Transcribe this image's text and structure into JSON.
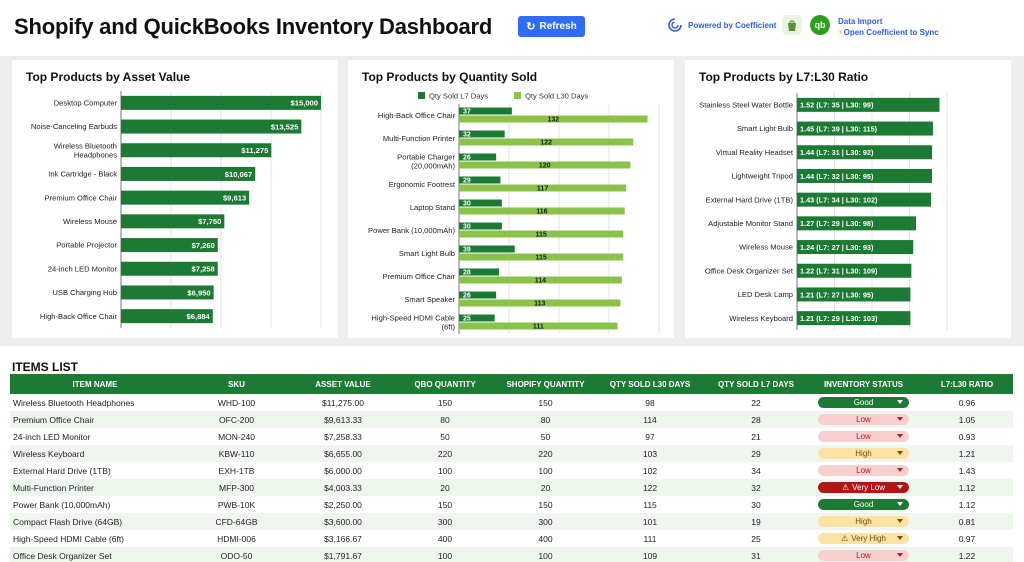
{
  "header": {
    "title": "Shopify and QuickBooks Inventory Dashboard",
    "refresh_label": "Refresh",
    "powered_by": "Powered by Coefficient",
    "data_import": "Data Import",
    "open_sync": "Open Coefficient to Sync",
    "qb_logo_text": "qb"
  },
  "colors": {
    "dark_green": "#1d7a34",
    "light_green": "#8bc34a",
    "accent_blue": "#2f6df6"
  },
  "chart_data": [
    {
      "type": "bar",
      "orientation": "horizontal",
      "title": "Top Products by Asset Value",
      "categories": [
        "Desktop Computer",
        "Noise-Canceling Earbuds",
        "Wireless Bluetooth Headphones",
        "Ink Cartridge - Black",
        "Premium Office Chair",
        "Wireless Mouse",
        "Portable Projector",
        "24-inch LED Monitor",
        "USB Charging Hub",
        "High-Back Office Chair"
      ],
      "values": [
        15000,
        13525,
        11275,
        10067,
        9613,
        7750,
        7260,
        7258,
        6950,
        6884
      ],
      "labels": [
        "$15,000",
        "$13,525",
        "$11,275",
        "$10,067",
        "$9,613",
        "$7,750",
        "$7,260",
        "$7,258",
        "$6,950",
        "$6,884"
      ],
      "xlim": [
        0,
        15000
      ]
    },
    {
      "type": "bar",
      "orientation": "horizontal",
      "title": "Top Products by Quantity Sold",
      "categories": [
        "High-Back Office Chair",
        "Multi-Function Printer",
        "Portable Charger (20,000mAh)",
        "Ergonomic Footrest",
        "Laptop Stand",
        "Power Bank (10,000mAh)",
        "Smart Light Bulb",
        "Premium Office Chair",
        "Smart Speaker",
        "High-Speed HDMI Cable (6ft)"
      ],
      "series": [
        {
          "name": "Qty Sold L7 Days",
          "values": [
            37,
            32,
            26,
            29,
            30,
            30,
            39,
            28,
            26,
            25
          ]
        },
        {
          "name": "Qty Sold L30 Days",
          "values": [
            132,
            122,
            120,
            117,
            116,
            115,
            115,
            114,
            113,
            111
          ]
        }
      ],
      "xlim": [
        0,
        140
      ],
      "legend": "top"
    },
    {
      "type": "bar",
      "orientation": "horizontal",
      "title": "Top Products by L7:L30 Ratio",
      "categories": [
        "Stainless Steel Water Bottle",
        "Smart Light Bulb",
        "Virtual Reality Headset",
        "Lightweight Tripod",
        "External Hard Drive (1TB)",
        "Adjustable Monitor Stand",
        "Wireless Mouse",
        "Office Desk Organizer Set",
        "LED Desk Lamp",
        "Wireless Keyboard"
      ],
      "values": [
        1.52,
        1.45,
        1.44,
        1.44,
        1.43,
        1.27,
        1.24,
        1.22,
        1.21,
        1.21
      ],
      "labels": [
        "1.52 (L7: 35 | L30: 99)",
        "1.45 (L7: 39 | L30: 115)",
        "1.44 (L7: 31 | L30: 92)",
        "1.44 (L7: 32 | L30: 95)",
        "1.43 (L7: 34 | L30: 102)",
        "1.27 (L7: 29 | L30: 98)",
        "1.24 (L7: 27 | L30: 93)",
        "1.22 (L7: 31 | L30: 109)",
        "1.21 (L7: 27 | L30: 95)",
        "1.21 (L7: 29 | L30: 103)"
      ],
      "xlim": [
        0,
        1.6
      ]
    }
  ],
  "items": {
    "title": "ITEMS LIST",
    "columns": [
      "ITEM NAME",
      "SKU",
      "ASSET VALUE",
      "QBO QUANTITY",
      "SHOPIFY QUANTITY",
      "QTY SOLD L30 DAYS",
      "QTY SOLD L7 DAYS",
      "INVENTORY STATUS",
      "L7:L30 RATIO"
    ],
    "rows": [
      [
        "Wireless Bluetooth Headphones",
        "WHD-100",
        "$11,275.00",
        "150",
        "150",
        "98",
        "22",
        "Good",
        "0.96"
      ],
      [
        "Premium Office Chair",
        "OFC-200",
        "$9,613.33",
        "80",
        "80",
        "114",
        "28",
        "Low",
        "1.05"
      ],
      [
        "24-inch LED Monitor",
        "MON-240",
        "$7,258.33",
        "50",
        "50",
        "97",
        "21",
        "Low",
        "0.93"
      ],
      [
        "Wireless Keyboard",
        "KBW-110",
        "$6,655.00",
        "220",
        "220",
        "103",
        "29",
        "High",
        "1.21"
      ],
      [
        "External Hard Drive (1TB)",
        "EXH-1TB",
        "$6,000.00",
        "100",
        "100",
        "102",
        "34",
        "Low",
        "1.43"
      ],
      [
        "Multi-Function Printer",
        "MFP-300",
        "$4,003.33",
        "20",
        "20",
        "122",
        "32",
        "Very Low",
        "1.12"
      ],
      [
        "Power Bank (10,000mAh)",
        "PWB-10K",
        "$2,250.00",
        "150",
        "150",
        "115",
        "30",
        "Good",
        "1.12"
      ],
      [
        "Compact Flash Drive (64GB)",
        "CFD-64GB",
        "$3,600.00",
        "300",
        "300",
        "101",
        "19",
        "High",
        "0.81"
      ],
      [
        "High-Speed HDMI Cable (6ft)",
        "HDMI-006",
        "$3,166.67",
        "400",
        "400",
        "111",
        "25",
        "Very High",
        "0.97"
      ],
      [
        "Office Desk Organizer Set",
        "ODO-50",
        "$1,791.67",
        "100",
        "100",
        "109",
        "31",
        "Low",
        "1.22"
      ]
    ]
  }
}
